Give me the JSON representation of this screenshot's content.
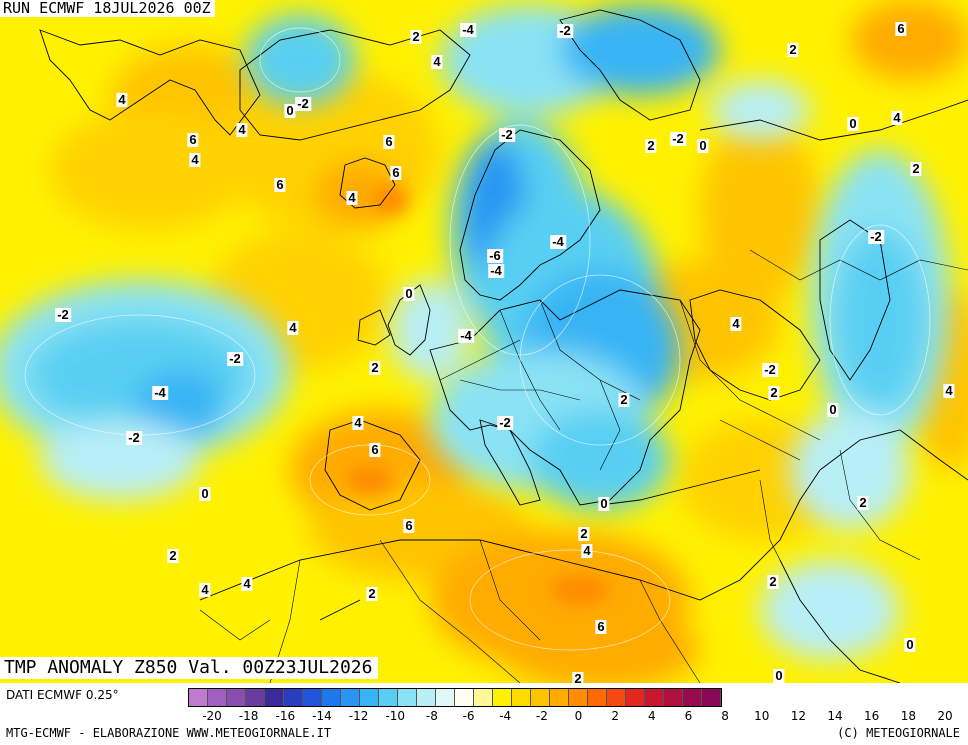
{
  "header": {
    "run": "RUN ECMWF 18JUL2026 00Z",
    "valid": "TMP ANOMALY Z850 Val. 00Z23JUL2026"
  },
  "footer": {
    "dati": "DATI ECMWF 0.25°",
    "credit": "MTG-ECMWF - ELABORAZIONE WWW.METEOGIORNALE.IT",
    "copyright": "(C) METEOGIORNALE"
  },
  "legend": {
    "colors": [
      "#c07ad0",
      "#a060c0",
      "#8a4db0",
      "#6a3ca0",
      "#3a2a9a",
      "#2a3cc0",
      "#1f55d8",
      "#1e78ec",
      "#2896f2",
      "#38b4f4",
      "#58cff2",
      "#8ae2f4",
      "#b8eef6",
      "#e0f8f8",
      "#fffef0",
      "#fff79a",
      "#fff100",
      "#ffdc00",
      "#ffc400",
      "#ffab00",
      "#ff8c00",
      "#ff6a00",
      "#f24a10",
      "#e02820",
      "#c81830",
      "#b01040",
      "#980a50",
      "#8a0858"
    ],
    "tick_labels": [
      "-20",
      "-18",
      "-16",
      "-14",
      "-12",
      "-10",
      "-8",
      "-6",
      "-4",
      "-2",
      "0",
      "2",
      "4",
      "6",
      "8",
      "10",
      "12",
      "14",
      "16",
      "18",
      "20"
    ]
  },
  "map_labels": [
    {
      "text": "2"
    },
    {
      "text": "-4"
    },
    {
      "text": "-2"
    },
    {
      "text": "2"
    },
    {
      "text": "6"
    },
    {
      "text": "4"
    },
    {
      "text": "4"
    },
    {
      "text": "6"
    },
    {
      "text": "0"
    },
    {
      "text": "-2"
    },
    {
      "text": "4"
    },
    {
      "text": "6"
    },
    {
      "text": "-2"
    },
    {
      "text": "2"
    },
    {
      "text": "-2"
    },
    {
      "text": "0"
    },
    {
      "text": "0"
    },
    {
      "text": "4"
    },
    {
      "text": "4"
    },
    {
      "text": "6"
    },
    {
      "text": "6"
    },
    {
      "text": "4"
    },
    {
      "text": "2"
    },
    {
      "text": "-4"
    },
    {
      "text": "-6"
    },
    {
      "text": "-4"
    },
    {
      "text": "-2"
    },
    {
      "text": "0"
    },
    {
      "text": "-2"
    },
    {
      "text": "4"
    },
    {
      "text": "-4"
    },
    {
      "text": "-2"
    },
    {
      "text": "4"
    },
    {
      "text": "-2"
    },
    {
      "text": "2"
    },
    {
      "text": "-4"
    },
    {
      "text": "2"
    },
    {
      "text": "2"
    },
    {
      "text": "0"
    },
    {
      "text": "4"
    },
    {
      "text": "-2"
    },
    {
      "text": "6"
    },
    {
      "text": "-2"
    },
    {
      "text": "0"
    },
    {
      "text": "0"
    },
    {
      "text": "2"
    },
    {
      "text": "4"
    },
    {
      "text": "6"
    },
    {
      "text": "2"
    },
    {
      "text": "4"
    },
    {
      "text": "4"
    },
    {
      "text": "2"
    },
    {
      "text": "2"
    },
    {
      "text": "6"
    },
    {
      "text": "4"
    },
    {
      "text": "2"
    },
    {
      "text": "0"
    },
    {
      "text": "0"
    },
    {
      "text": "2"
    }
  ]
}
